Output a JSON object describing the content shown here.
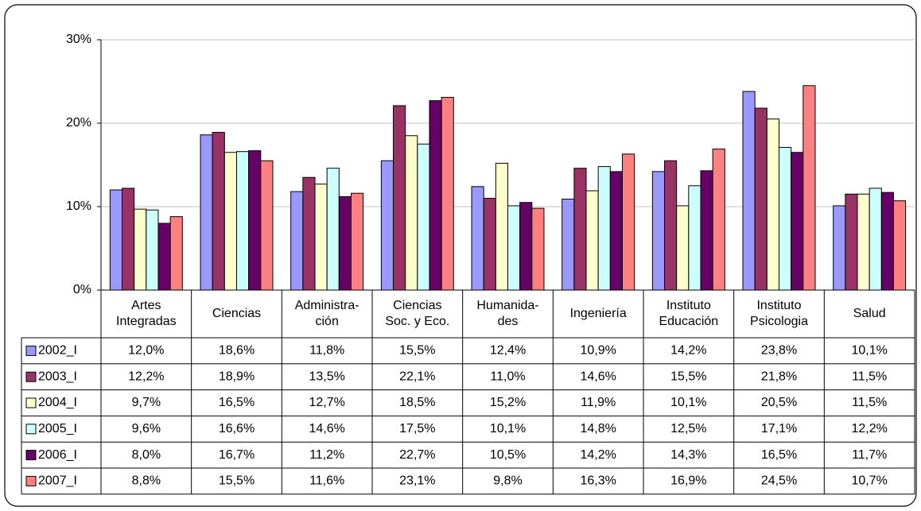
{
  "chart_data": {
    "type": "bar",
    "categories": [
      [
        "Artes",
        "Integradas"
      ],
      [
        "Ciencias"
      ],
      [
        "Administra-",
        "ción"
      ],
      [
        "Ciencias",
        "Soc. y Eco."
      ],
      [
        "Humanida-",
        "des"
      ],
      [
        "Ingeniería"
      ],
      [
        "Instituto",
        "Educación"
      ],
      [
        "Instituto",
        "Psicologia"
      ],
      [
        "Salud"
      ]
    ],
    "series": [
      {
        "name": "2002_I",
        "color": "#9999ff",
        "values": [
          12.0,
          18.6,
          11.8,
          15.5,
          12.4,
          10.9,
          14.2,
          23.8,
          10.1
        ],
        "value_labels": [
          "12,0%",
          "18,6%",
          "11,8%",
          "15,5%",
          "12,4%",
          "10,9%",
          "14,2%",
          "23,8%",
          "10,1%"
        ]
      },
      {
        "name": "2003_I",
        "color": "#993366",
        "values": [
          12.2,
          18.9,
          13.5,
          22.1,
          11.0,
          14.6,
          15.5,
          21.8,
          11.5
        ],
        "value_labels": [
          "12,2%",
          "18,9%",
          "13,5%",
          "22,1%",
          "11,0%",
          "14,6%",
          "15,5%",
          "21,8%",
          "11,5%"
        ]
      },
      {
        "name": "2004_I",
        "color": "#ffffcc",
        "values": [
          9.7,
          16.5,
          12.7,
          18.5,
          15.2,
          11.9,
          10.1,
          20.5,
          11.5
        ],
        "value_labels": [
          "9,7%",
          "16,5%",
          "12,7%",
          "18,5%",
          "15,2%",
          "11,9%",
          "10,1%",
          "20,5%",
          "11,5%"
        ]
      },
      {
        "name": "2005_I",
        "color": "#ccffff",
        "values": [
          9.6,
          16.6,
          14.6,
          17.5,
          10.1,
          14.8,
          12.5,
          17.1,
          12.2
        ],
        "value_labels": [
          "9,6%",
          "16,6%",
          "14,6%",
          "17,5%",
          "10,1%",
          "14,8%",
          "12,5%",
          "17,1%",
          "12,2%"
        ]
      },
      {
        "name": "2006_I",
        "color": "#660066",
        "values": [
          8.0,
          16.7,
          11.2,
          22.7,
          10.5,
          14.2,
          14.3,
          16.5,
          11.7
        ],
        "value_labels": [
          "8,0%",
          "16,7%",
          "11,2%",
          "22,7%",
          "10,5%",
          "14,2%",
          "14,3%",
          "16,5%",
          "11,7%"
        ]
      },
      {
        "name": "2007_I",
        "color": "#ff8080",
        "values": [
          8.8,
          15.5,
          11.6,
          23.1,
          9.8,
          16.3,
          16.9,
          24.5,
          10.7
        ],
        "value_labels": [
          "8,8%",
          "15,5%",
          "11,6%",
          "23,1%",
          "9,8%",
          "16,3%",
          "16,9%",
          "24,5%",
          "10,7%"
        ]
      }
    ],
    "ylim": [
      0,
      30
    ],
    "yticks": [
      {
        "value": 0,
        "label": "0%"
      },
      {
        "value": 10,
        "label": "10%"
      },
      {
        "value": 20,
        "label": "20%"
      },
      {
        "value": 30,
        "label": "30%"
      }
    ],
    "grid": true
  }
}
